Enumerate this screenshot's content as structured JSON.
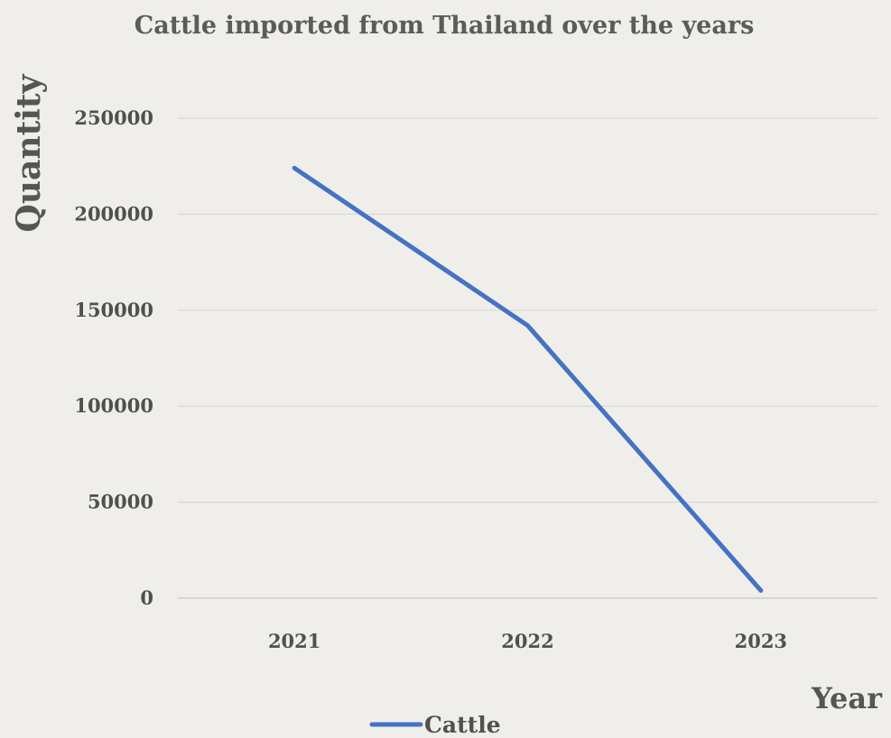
{
  "chart_data": {
    "type": "line",
    "title": "Cattle imported from Thailand over the years",
    "xlabel": "Year",
    "ylabel": "Quantity",
    "categories": [
      "2021",
      "2022",
      "2023"
    ],
    "series": [
      {
        "name": "Cattle",
        "values": [
          224000,
          142000,
          4000
        ],
        "color": "#4472c4"
      }
    ],
    "ylim": [
      0,
      250000
    ],
    "yticks": [
      "0",
      "50000",
      "100000",
      "150000",
      "200000",
      "250000"
    ],
    "grid": true,
    "legend": "bottom"
  }
}
